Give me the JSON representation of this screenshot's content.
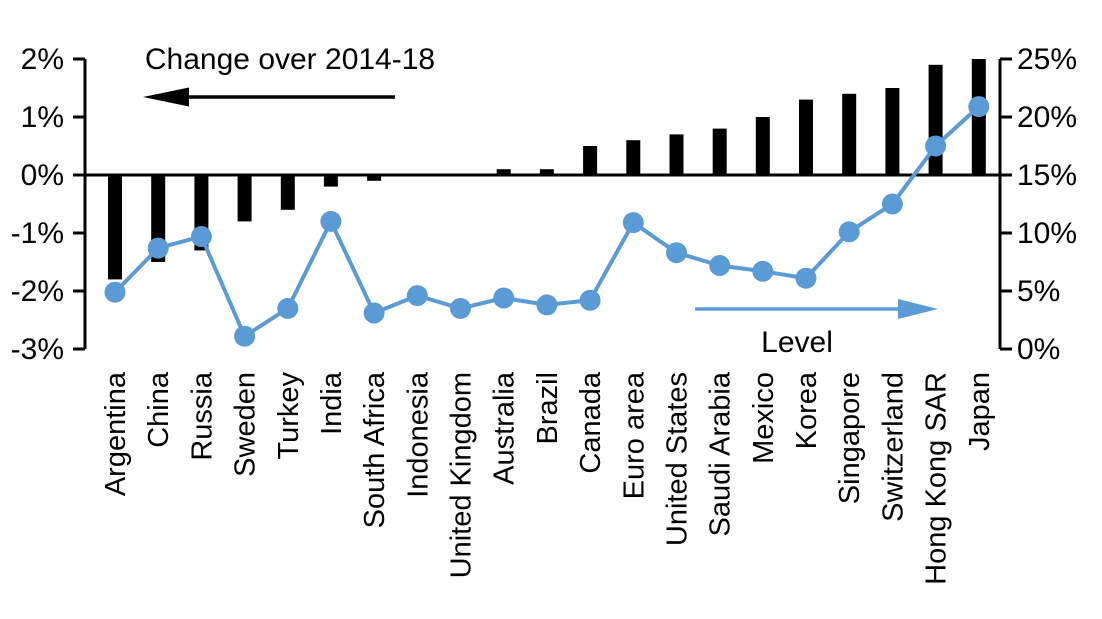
{
  "chart_data": {
    "type": "bar",
    "subtype": "bar+line-dual-axis",
    "title": "",
    "categories": [
      "Argentina",
      "China",
      "Russia",
      "Sweden",
      "Turkey",
      "India",
      "South Africa",
      "Indonesia",
      "United Kingdom",
      "Australia",
      "Brazil",
      "Canada",
      "Euro area",
      "United States",
      "Saudi Arabia",
      "Mexico",
      "Korea",
      "Singapore",
      "Switzerland",
      "Hong Kong SAR",
      "Japan"
    ],
    "series": [
      {
        "name": "Change over 2014-18",
        "type": "bar",
        "axis": "left",
        "color": "#000000",
        "values": [
          -1.8,
          -1.5,
          -1.3,
          -0.8,
          -0.6,
          -0.2,
          -0.1,
          0,
          0,
          0.1,
          0.1,
          0.5,
          0.6,
          0.7,
          0.8,
          1.0,
          1.3,
          1.4,
          1.5,
          1.9,
          2.0
        ]
      },
      {
        "name": "Level",
        "type": "line",
        "axis": "right",
        "color": "#5b9bd5",
        "values": [
          4.9,
          8.7,
          9.7,
          1.1,
          3.5,
          11.0,
          3.1,
          4.6,
          3.5,
          4.4,
          3.8,
          4.2,
          10.9,
          8.3,
          7.2,
          6.7,
          6.1,
          10.1,
          12.5,
          17.5,
          20.9
        ]
      }
    ],
    "left_axis": {
      "min": -3,
      "max": 2,
      "tick_values": [
        2,
        1,
        0,
        -1,
        -2,
        -3
      ],
      "tick_labels": [
        "2%",
        "1%",
        "0%",
        "-1%",
        "-2%",
        "-3%"
      ]
    },
    "right_axis": {
      "min": 0,
      "max": 25,
      "tick_values": [
        25,
        20,
        15,
        10,
        5,
        0
      ],
      "tick_labels": [
        "25%",
        "20%",
        "15%",
        "10%",
        "5%",
        "0%"
      ]
    },
    "annotations": {
      "left_arrow_direction": "left",
      "right_arrow_direction": "right"
    },
    "grid": false,
    "legend_position": "none",
    "background": "#ffffff"
  }
}
